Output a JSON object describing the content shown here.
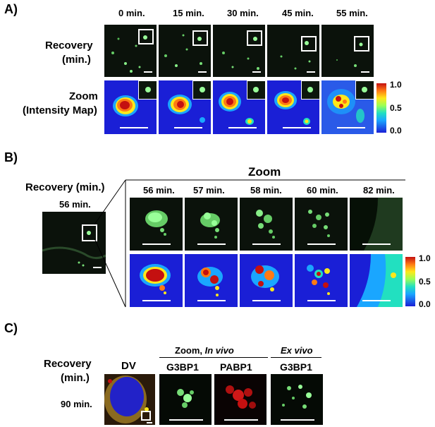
{
  "panelA": {
    "letter": "A)",
    "times": [
      "0 min.",
      "15 min.",
      "30 min.",
      "45 min.",
      "55 min."
    ],
    "row1_label_line1": "Recovery",
    "row1_label_line2": "(min.)",
    "row2_label_line1": "Zoom",
    "row2_label_line2": "(Intensity Map)",
    "colorbar": [
      "1.0",
      "0.5",
      "0.0"
    ]
  },
  "panelB": {
    "letter": "B)",
    "recovery_label": "Recovery (min.)",
    "overview_time": "56 min.",
    "zoom_title": "Zoom",
    "times": [
      "56 min.",
      "57 min.",
      "58 min.",
      "60 min.",
      "82 min."
    ],
    "colorbar": [
      "1.0",
      "0.5",
      "0.0"
    ]
  },
  "panelC": {
    "letter": "C)",
    "label_line1": "Recovery",
    "label_line2": "(min.)",
    "time": "90 min.",
    "dv": "DV",
    "zoom_prefix": "Zoom, ",
    "zoom_italic": "In vivo",
    "exvivo": "Ex vivo",
    "g3bp1_a": "G3BP1",
    "pabp1": "PABP1",
    "g3bp1_b": "G3BP1"
  },
  "colors": {
    "green_bg": "#0b120b",
    "heat_low": "#1a1fd6",
    "heat_high": "#c41010"
  }
}
